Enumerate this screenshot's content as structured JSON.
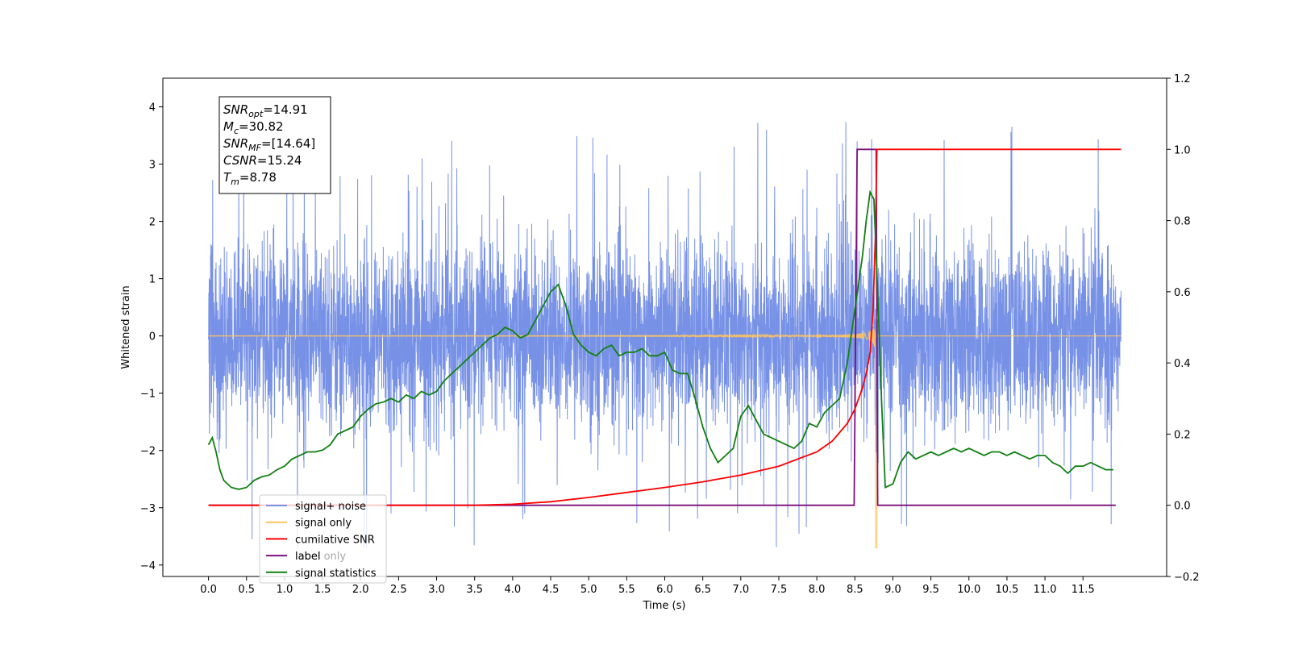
{
  "chart_data": {
    "type": "line",
    "xlabel": "Time (s)",
    "ylabel_left": "Whitened strain",
    "ylabel_right": "",
    "xlim": [
      -0.6,
      12.6
    ],
    "ylim_left": [
      -4.2,
      4.5
    ],
    "ylim_right": [
      -0.2,
      1.2
    ],
    "x_ticks": [
      "0.0",
      "0.5",
      "1.0",
      "1.5",
      "2.0",
      "2.5",
      "3.0",
      "3.5",
      "4.0",
      "4.5",
      "5.0",
      "5.5",
      "6.0",
      "6.5",
      "7.0",
      "7.5",
      "8.0",
      "8.5",
      "9.0",
      "9.5",
      "10.0",
      "10.5",
      "11.0",
      "11.5"
    ],
    "x_tick_values": [
      0.0,
      0.5,
      1.0,
      1.5,
      2.0,
      2.5,
      3.0,
      3.5,
      4.0,
      4.5,
      5.0,
      5.5,
      6.0,
      6.5,
      7.0,
      7.5,
      8.0,
      8.5,
      9.0,
      9.5,
      10.0,
      10.5,
      11.0,
      11.5
    ],
    "y_ticks_left": [
      "4",
      "3",
      "2",
      "1",
      "0",
      "−1",
      "−2",
      "−3",
      "−4"
    ],
    "y_tick_values_left": [
      4,
      3,
      2,
      1,
      0,
      -1,
      -2,
      -3,
      -4
    ],
    "y_ticks_right": [
      "1.2",
      "1.0",
      "0.8",
      "0.6",
      "0.4",
      "0.2",
      "0.0",
      "−0.2"
    ],
    "y_tick_values_right": [
      1.2,
      1.0,
      0.8,
      0.6,
      0.4,
      0.2,
      0.0,
      -0.2
    ],
    "grid": false,
    "legend_position": "lower-left",
    "annotation": [
      {
        "base": "SNR",
        "sub": "opt",
        "rest": "=14.91"
      },
      {
        "base": "M",
        "sub": "c",
        "rest": "=30.82"
      },
      {
        "base": "SNR",
        "sub": "MF",
        "rest": "=[14.64]"
      },
      {
        "base": "CSNR",
        "sub": "",
        "rest": "=15.24"
      },
      {
        "base": "T",
        "sub": "m",
        "rest": "=8.78"
      }
    ],
    "series": [
      {
        "name": "signal+ noise",
        "axis": "left",
        "color": "#6b88e4",
        "kind": "noise",
        "x_range": [
          0.0,
          12.0
        ],
        "typical_range": [
          -1.0,
          1.0
        ],
        "extremes": [
          -3.7,
          4.1
        ]
      },
      {
        "name": "signal only",
        "axis": "left",
        "color": "#ffc45e",
        "kind": "chirp",
        "x_range": [
          0.0,
          12.0
        ],
        "merger_time": 8.78,
        "peak_amplitude": 3.3,
        "min_value": -3.7
      },
      {
        "name": "cumilative SNR",
        "axis": "right",
        "color": "#ff0000",
        "x": [
          0.0,
          3.5,
          4.0,
          4.5,
          5.0,
          5.5,
          6.0,
          6.5,
          7.0,
          7.5,
          8.0,
          8.2,
          8.4,
          8.5,
          8.6,
          8.65,
          8.7,
          8.74,
          8.77,
          8.79,
          9.0,
          12.0
        ],
        "y": [
          0.0,
          0.0,
          0.003,
          0.01,
          0.022,
          0.036,
          0.05,
          0.066,
          0.085,
          0.11,
          0.15,
          0.18,
          0.23,
          0.27,
          0.33,
          0.37,
          0.43,
          0.55,
          0.76,
          1.0,
          1.0,
          1.0
        ]
      },
      {
        "name": "label",
        "axis": "right",
        "color": "#7b0f7b",
        "x": [
          0.0,
          8.49,
          8.53,
          8.78,
          8.8,
          11.93
        ],
        "y": [
          0.0,
          0.0,
          1.0,
          1.0,
          0.0,
          0.0
        ]
      },
      {
        "name": "label only",
        "axis": "right",
        "color": "#7b0f7b",
        "legend_hidden": true,
        "x": [],
        "y": []
      },
      {
        "name": "signal statistics",
        "axis": "right",
        "color": "#118011",
        "x": [
          0.0,
          0.05,
          0.1,
          0.15,
          0.2,
          0.3,
          0.4,
          0.5,
          0.6,
          0.7,
          0.8,
          0.9,
          1.0,
          1.1,
          1.2,
          1.3,
          1.4,
          1.5,
          1.6,
          1.7,
          1.8,
          1.9,
          2.0,
          2.1,
          2.2,
          2.3,
          2.4,
          2.5,
          2.6,
          2.7,
          2.8,
          2.9,
          3.0,
          3.1,
          3.2,
          3.3,
          3.4,
          3.5,
          3.6,
          3.7,
          3.8,
          3.9,
          4.0,
          4.1,
          4.2,
          4.3,
          4.4,
          4.5,
          4.6,
          4.7,
          4.8,
          4.9,
          5.0,
          5.1,
          5.2,
          5.3,
          5.4,
          5.5,
          5.6,
          5.7,
          5.8,
          5.9,
          6.0,
          6.1,
          6.2,
          6.3,
          6.4,
          6.5,
          6.6,
          6.7,
          6.8,
          6.9,
          7.0,
          7.1,
          7.2,
          7.3,
          7.4,
          7.5,
          7.6,
          7.7,
          7.8,
          7.9,
          8.0,
          8.1,
          8.2,
          8.3,
          8.4,
          8.5,
          8.6,
          8.65,
          8.7,
          8.75,
          8.8,
          8.85,
          8.9,
          9.0,
          9.1,
          9.2,
          9.3,
          9.4,
          9.5,
          9.6,
          9.7,
          9.8,
          9.9,
          10.0,
          10.1,
          10.2,
          10.3,
          10.4,
          10.5,
          10.6,
          10.7,
          10.8,
          10.9,
          11.0,
          11.1,
          11.2,
          11.3,
          11.4,
          11.5,
          11.6,
          11.7,
          11.8,
          11.9
        ],
        "y": [
          0.17,
          0.19,
          0.15,
          0.1,
          0.07,
          0.05,
          0.045,
          0.05,
          0.07,
          0.08,
          0.085,
          0.1,
          0.11,
          0.13,
          0.14,
          0.15,
          0.15,
          0.155,
          0.17,
          0.2,
          0.21,
          0.22,
          0.25,
          0.27,
          0.285,
          0.29,
          0.3,
          0.29,
          0.31,
          0.3,
          0.32,
          0.31,
          0.32,
          0.35,
          0.37,
          0.39,
          0.41,
          0.43,
          0.45,
          0.47,
          0.48,
          0.5,
          0.49,
          0.47,
          0.48,
          0.52,
          0.56,
          0.6,
          0.62,
          0.56,
          0.48,
          0.45,
          0.43,
          0.42,
          0.44,
          0.45,
          0.42,
          0.43,
          0.43,
          0.44,
          0.42,
          0.42,
          0.43,
          0.38,
          0.37,
          0.37,
          0.3,
          0.22,
          0.16,
          0.12,
          0.14,
          0.16,
          0.25,
          0.28,
          0.24,
          0.2,
          0.19,
          0.18,
          0.17,
          0.16,
          0.18,
          0.23,
          0.22,
          0.26,
          0.28,
          0.3,
          0.4,
          0.55,
          0.7,
          0.8,
          0.88,
          0.86,
          0.6,
          0.3,
          0.05,
          0.06,
          0.12,
          0.15,
          0.13,
          0.14,
          0.15,
          0.14,
          0.15,
          0.16,
          0.15,
          0.16,
          0.15,
          0.14,
          0.15,
          0.15,
          0.14,
          0.15,
          0.14,
          0.13,
          0.14,
          0.14,
          0.12,
          0.11,
          0.09,
          0.11,
          0.11,
          0.12,
          0.11,
          0.1,
          0.1
        ]
      }
    ]
  }
}
